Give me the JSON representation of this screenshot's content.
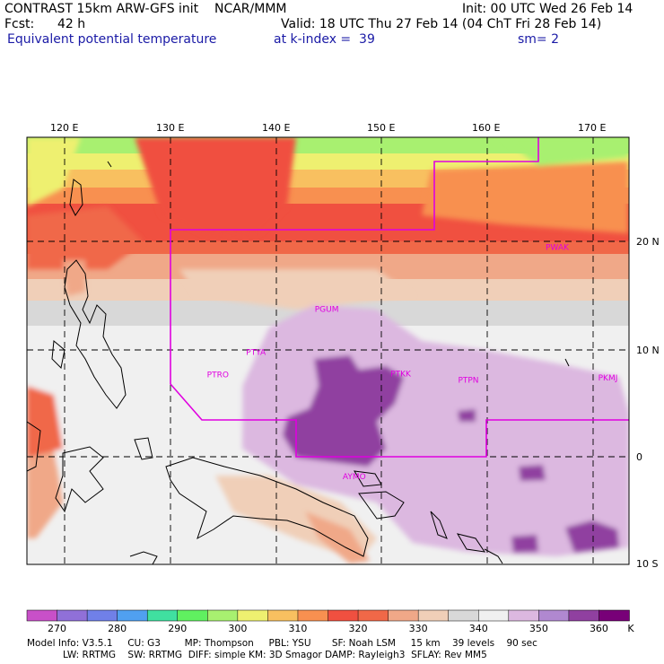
{
  "header": {
    "model_line": "CONTRAST 15km ARW-GFS init    NCAR/MMM",
    "init": "Init: 00 UTC Wed 26 Feb 14",
    "fcst_label": "Fcst:",
    "fcst_value": "42 h",
    "valid": "Valid: 18 UTC Thu 27 Feb 14 (04 ChT Fri 28 Feb 14)",
    "field": "Equivalent potential temperature",
    "level": "at k-index =  39",
    "smoothing": "sm= 2"
  },
  "map": {
    "lon_labels": [
      "120 E",
      "130 E",
      "140 E",
      "150 E",
      "160 E",
      "170 E"
    ],
    "lat_labels": [
      "20 N",
      "10 N",
      "0",
      "10 S"
    ],
    "stations": [
      {
        "id": "PGUM",
        "lon": 144.8,
        "lat": 13.5
      },
      {
        "id": "PTYA",
        "lon": 138.1,
        "lat": 9.5
      },
      {
        "id": "PTRO",
        "lon": 134.5,
        "lat": 7.4
      },
      {
        "id": "PTKK",
        "lon": 151.8,
        "lat": 7.5
      },
      {
        "id": "PTPN",
        "lon": 158.2,
        "lat": 6.9
      },
      {
        "id": "PKMJ",
        "lon": 171.4,
        "lat": 7.1
      },
      {
        "id": "PWAK",
        "lon": 166.6,
        "lat": 19.3
      },
      {
        "id": "AYMO",
        "lon": 147.4,
        "lat": -2.1
      }
    ],
    "colors": {
      "boundary": "#e000e0"
    }
  },
  "colorbar": {
    "labels": [
      "270",
      "280",
      "290",
      "300",
      "310",
      "320",
      "330",
      "340",
      "350",
      "360"
    ],
    "unit": "K",
    "colors": [
      "#c850c8",
      "#9070d8",
      "#7080e8",
      "#50a0f0",
      "#40e0a0",
      "#60f060",
      "#a8f070",
      "#eef070",
      "#f8c060",
      "#f89050",
      "#f05040",
      "#f06848",
      "#f0a888",
      "#f0cfb8",
      "#d8d8d8",
      "#f0f0f0",
      "#dcb8e0",
      "#b088d0",
      "#9040a0",
      "#780078"
    ]
  },
  "footer": {
    "line1": "Model Info: V3.5.1     CU: G3        MP: Thompson     PBL: YSU       SF: Noah LSM     15 km    39 levels    90 sec",
    "line2": "LW: RRTMG    SW: RRTMG  DIFF: simple KM: 3D Smagor DAMP: Rayleigh3  SFLAY: Rev MM5"
  }
}
